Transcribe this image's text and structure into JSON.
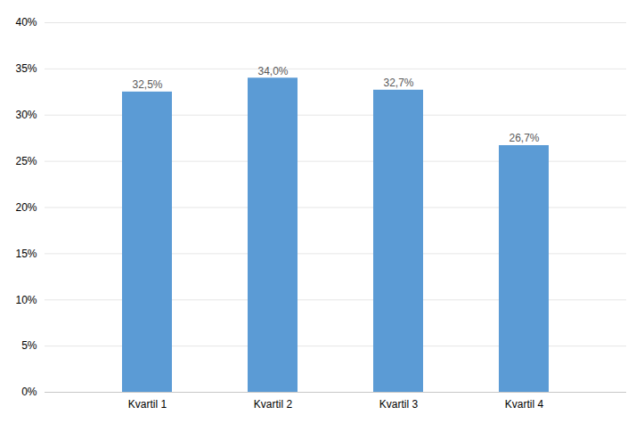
{
  "chart_data": {
    "type": "bar",
    "categories": [
      "Kvartil 1",
      "Kvartil 2",
      "Kvartil 3",
      "Kvartil 4"
    ],
    "values": [
      0.325,
      0.34,
      0.327,
      0.267
    ],
    "value_labels": [
      "32,5%",
      "34,0%",
      "32,7%",
      "26,7%"
    ],
    "data_labels": true,
    "color": "#5b9bd5",
    "ylim": [
      0,
      0.4
    ],
    "yticks": [
      {
        "value": 0.0,
        "label": "0%"
      },
      {
        "value": 0.05,
        "label": "5%"
      },
      {
        "value": 0.1,
        "label": "10%"
      },
      {
        "value": 0.15,
        "label": "15%"
      },
      {
        "value": 0.2,
        "label": "20%"
      },
      {
        "value": 0.25,
        "label": "25%"
      },
      {
        "value": 0.3,
        "label": "30%"
      },
      {
        "value": 0.35,
        "label": "35%"
      },
      {
        "value": 0.4,
        "label": "40%"
      }
    ],
    "grid": true
  }
}
